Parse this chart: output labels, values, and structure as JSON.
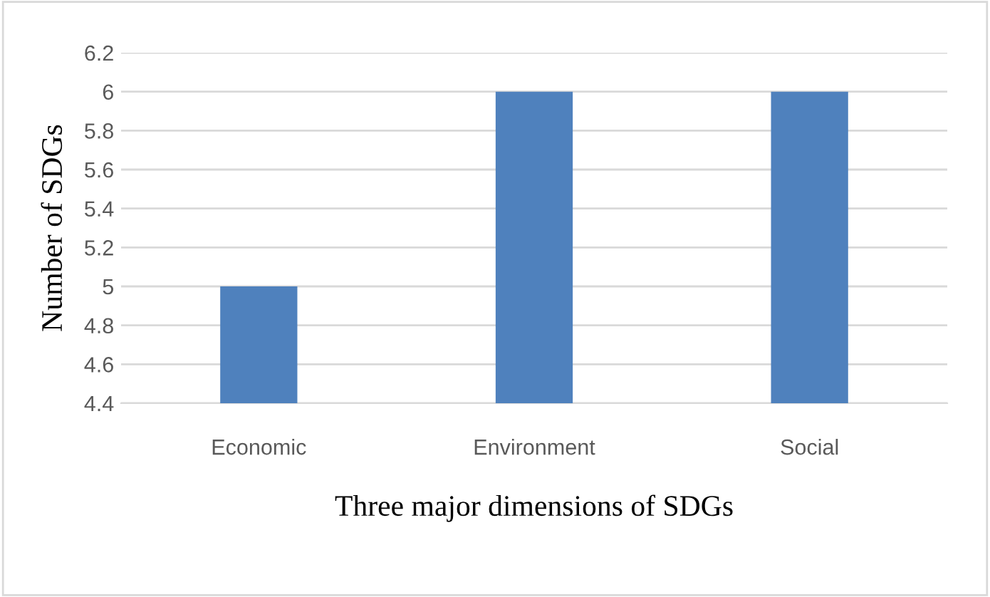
{
  "chart_data": {
    "type": "bar",
    "xlabel": "Three major dimensions of SDGs",
    "ylabel": "Number of SDGs",
    "categories": [
      "Economic",
      "Environment",
      "Social"
    ],
    "values": [
      5,
      6,
      6
    ],
    "color": "#4f81bd",
    "ylim": [
      4.4,
      6.2
    ],
    "yticks": [
      4.4,
      4.6,
      4.8,
      5,
      5.2,
      5.4,
      5.6,
      5.8,
      6,
      6.2
    ],
    "grid": "y"
  }
}
